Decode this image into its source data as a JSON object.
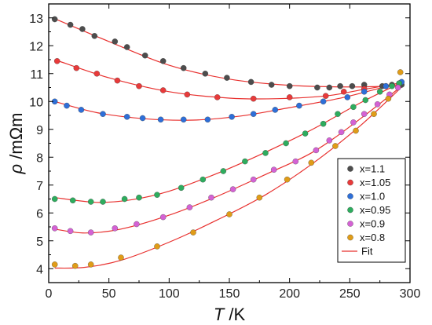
{
  "chart_data": {
    "type": "scatter",
    "xlabel": {
      "symbol": "T",
      "unit": " /K"
    },
    "ylabel": {
      "symbol": "ρ",
      "unit": " /mΩm"
    },
    "xlim": [
      0,
      300
    ],
    "ylim": [
      3.5,
      13.5
    ],
    "xticks": [
      "0",
      "50",
      "100",
      "150",
      "200",
      "250",
      "300"
    ],
    "xtick_values": [
      0,
      50,
      100,
      150,
      200,
      250,
      300
    ],
    "yticks": [
      "4",
      "5",
      "6",
      "7",
      "8",
      "9",
      "10",
      "11",
      "12",
      "13"
    ],
    "ytick_values": [
      4,
      5,
      6,
      7,
      8,
      9,
      10,
      11,
      12,
      13
    ],
    "grid": false,
    "legend_position": "bottom-right",
    "fit_color": "#e8302e",
    "fit_label": "Fit",
    "series": [
      {
        "name": "x=1.1",
        "color": "#4d4d4d",
        "points": [
          [
            5,
            12.95
          ],
          [
            18,
            12.75
          ],
          [
            28,
            12.6
          ],
          [
            38,
            12.35
          ],
          [
            55,
            12.15
          ],
          [
            65,
            11.95
          ],
          [
            80,
            11.65
          ],
          [
            95,
            11.45
          ],
          [
            112,
            11.2
          ],
          [
            130,
            11.0
          ],
          [
            148,
            10.85
          ],
          [
            168,
            10.7
          ],
          [
            185,
            10.6
          ],
          [
            200,
            10.55
          ],
          [
            223,
            10.5
          ],
          [
            233,
            10.5
          ],
          [
            242,
            10.55
          ],
          [
            252,
            10.55
          ],
          [
            262,
            10.6
          ],
          [
            277,
            10.55
          ],
          [
            285,
            10.6
          ],
          [
            293,
            10.6
          ]
        ],
        "fit": [
          [
            5,
            12.97
          ],
          [
            50,
            12.15
          ],
          [
            100,
            11.3
          ],
          [
            150,
            10.8
          ],
          [
            200,
            10.58
          ],
          [
            250,
            10.52
          ],
          [
            275,
            10.54
          ],
          [
            295,
            10.56
          ]
        ]
      },
      {
        "name": "x=1.05",
        "color": "#e83a3a",
        "points": [
          [
            7,
            11.45
          ],
          [
            23,
            11.2
          ],
          [
            40,
            11.0
          ],
          [
            57,
            10.75
          ],
          [
            75,
            10.55
          ],
          [
            95,
            10.4
          ],
          [
            115,
            10.25
          ],
          [
            140,
            10.15
          ],
          [
            170,
            10.1
          ],
          [
            200,
            10.15
          ],
          [
            230,
            10.2
          ],
          [
            245,
            10.35
          ],
          [
            262,
            10.45
          ],
          [
            280,
            10.55
          ],
          [
            291,
            10.65
          ]
        ],
        "fit": [
          [
            5,
            11.5
          ],
          [
            50,
            10.85
          ],
          [
            100,
            10.35
          ],
          [
            150,
            10.12
          ],
          [
            190,
            10.1
          ],
          [
            230,
            10.2
          ],
          [
            260,
            10.42
          ],
          [
            295,
            10.68
          ]
        ]
      },
      {
        "name": "x=1.0",
        "color": "#2e6fd8",
        "points": [
          [
            5,
            10.0
          ],
          [
            15,
            9.85
          ],
          [
            27,
            9.7
          ],
          [
            45,
            9.55
          ],
          [
            65,
            9.45
          ],
          [
            78,
            9.4
          ],
          [
            93,
            9.35
          ],
          [
            112,
            9.35
          ],
          [
            132,
            9.35
          ],
          [
            152,
            9.45
          ],
          [
            170,
            9.55
          ],
          [
            188,
            9.7
          ],
          [
            208,
            9.85
          ],
          [
            228,
            10.0
          ],
          [
            248,
            10.15
          ],
          [
            262,
            10.35
          ],
          [
            280,
            10.55
          ],
          [
            293,
            10.7
          ]
        ],
        "fit": [
          [
            5,
            10.0
          ],
          [
            40,
            9.6
          ],
          [
            80,
            9.38
          ],
          [
            120,
            9.33
          ],
          [
            160,
            9.48
          ],
          [
            200,
            9.78
          ],
          [
            240,
            10.1
          ],
          [
            270,
            10.42
          ],
          [
            295,
            10.72
          ]
        ]
      },
      {
        "name": "x=0.95",
        "color": "#2eac5e",
        "points": [
          [
            5,
            6.5
          ],
          [
            20,
            6.45
          ],
          [
            35,
            6.4
          ],
          [
            45,
            6.4
          ],
          [
            63,
            6.5
          ],
          [
            75,
            6.55
          ],
          [
            90,
            6.65
          ],
          [
            110,
            6.9
          ],
          [
            128,
            7.2
          ],
          [
            145,
            7.5
          ],
          [
            163,
            7.85
          ],
          [
            180,
            8.15
          ],
          [
            197,
            8.5
          ],
          [
            213,
            8.85
          ],
          [
            228,
            9.2
          ],
          [
            240,
            9.55
          ],
          [
            253,
            9.8
          ],
          [
            263,
            10.05
          ],
          [
            275,
            10.35
          ],
          [
            285,
            10.55
          ],
          [
            291,
            10.65
          ]
        ],
        "fit": [
          [
            5,
            6.55
          ],
          [
            40,
            6.38
          ],
          [
            70,
            6.48
          ],
          [
            100,
            6.78
          ],
          [
            140,
            7.42
          ],
          [
            180,
            8.18
          ],
          [
            220,
            9.02
          ],
          [
            260,
            9.98
          ],
          [
            295,
            10.72
          ]
        ]
      },
      {
        "name": "x=0.9",
        "color": "#d462d4",
        "points": [
          [
            5,
            5.45
          ],
          [
            18,
            5.35
          ],
          [
            35,
            5.3
          ],
          [
            55,
            5.45
          ],
          [
            73,
            5.6
          ],
          [
            95,
            5.85
          ],
          [
            117,
            6.2
          ],
          [
            135,
            6.55
          ],
          [
            153,
            6.85
          ],
          [
            170,
            7.2
          ],
          [
            187,
            7.55
          ],
          [
            205,
            7.85
          ],
          [
            222,
            8.25
          ],
          [
            233,
            8.6
          ],
          [
            243,
            8.9
          ],
          [
            253,
            9.25
          ],
          [
            262,
            9.55
          ],
          [
            273,
            9.9
          ],
          [
            283,
            10.25
          ],
          [
            290,
            10.5
          ]
        ],
        "fit": [
          [
            5,
            5.42
          ],
          [
            30,
            5.28
          ],
          [
            60,
            5.42
          ],
          [
            100,
            5.92
          ],
          [
            140,
            6.6
          ],
          [
            180,
            7.38
          ],
          [
            220,
            8.2
          ],
          [
            260,
            9.42
          ],
          [
            295,
            10.62
          ]
        ]
      },
      {
        "name": "x=0.8",
        "color": "#e09c18",
        "points": [
          [
            5,
            4.15
          ],
          [
            22,
            4.1
          ],
          [
            35,
            4.15
          ],
          [
            60,
            4.4
          ],
          [
            90,
            4.8
          ],
          [
            120,
            5.3
          ],
          [
            150,
            5.95
          ],
          [
            175,
            6.55
          ],
          [
            198,
            7.2
          ],
          [
            218,
            7.8
          ],
          [
            238,
            8.4
          ],
          [
            255,
            8.95
          ],
          [
            270,
            9.55
          ],
          [
            282,
            10.1
          ],
          [
            292,
            11.05
          ]
        ],
        "fit": [
          [
            5,
            4.02
          ],
          [
            30,
            4.05
          ],
          [
            60,
            4.3
          ],
          [
            100,
            4.95
          ],
          [
            140,
            5.75
          ],
          [
            180,
            6.65
          ],
          [
            220,
            7.8
          ],
          [
            260,
            9.18
          ],
          [
            295,
            10.6
          ]
        ]
      }
    ]
  }
}
